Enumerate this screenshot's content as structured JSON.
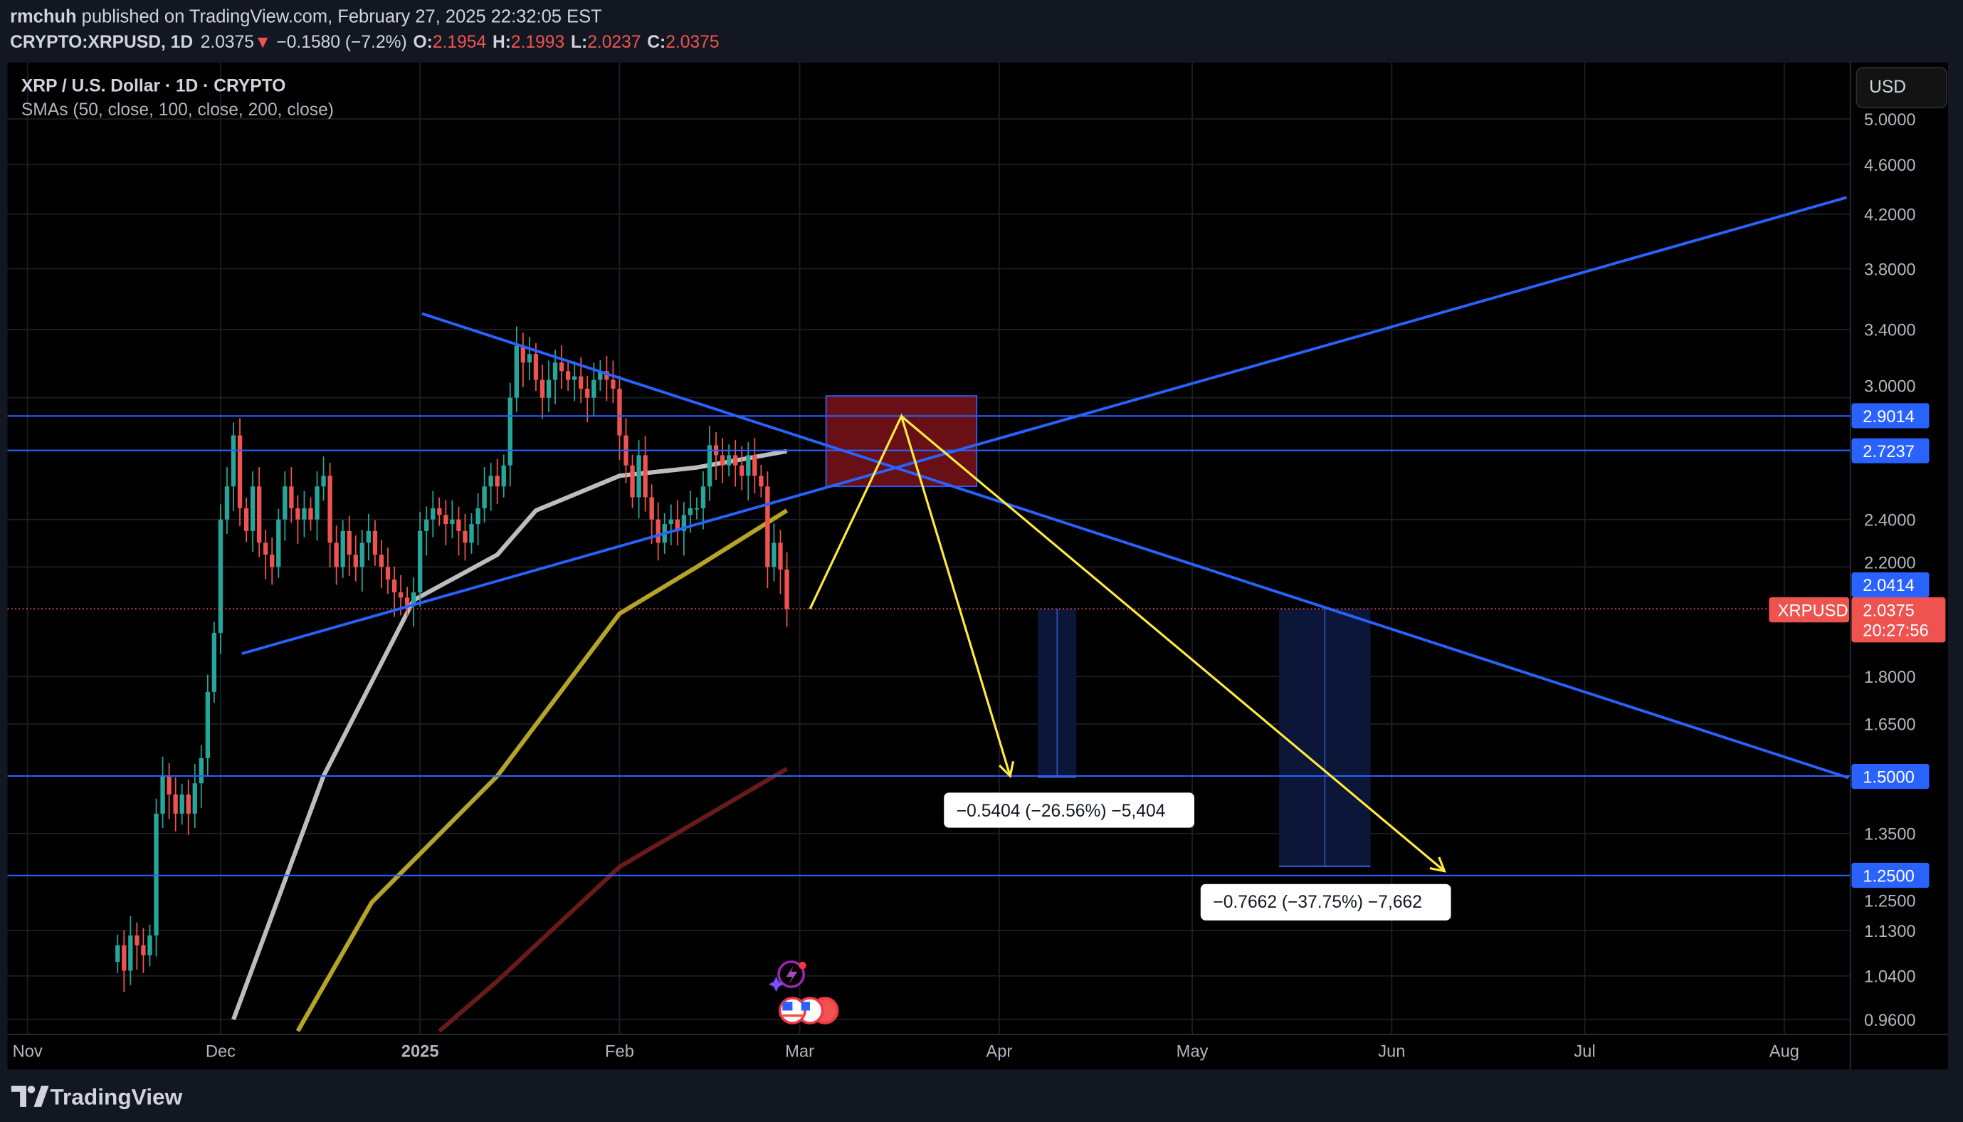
{
  "header": {
    "author": "rmchuh",
    "published": " published on TradingView.com, February 27, 2025 22:32:05 EST",
    "symbol": "CRYPTO:XRPUSD, 1D",
    "last": "2.0375",
    "change": "−0.1580 (−7.2%)",
    "o_label": "O:",
    "o": "2.1954",
    "h_label": "H:",
    "h": "2.1993",
    "l_label": "L:",
    "l": "2.0237",
    "c_label": "C:",
    "c": "2.0375"
  },
  "legend": {
    "title": "XRP / U.S. Dollar · 1D · CRYPTO",
    "indicator": "SMAs (50, close, 100, close, 200, close)"
  },
  "currency_button": "USD",
  "price_tags": {
    "symbol": "XRPUSD",
    "last": "2.0375",
    "countdown": "20:27:56",
    "lines": [
      "2.9014",
      "2.7237",
      "2.0414",
      "1.5000",
      "1.2500"
    ]
  },
  "measurements": [
    {
      "label": "−0.5404 (−26.56%) −5,404"
    },
    {
      "label": "−0.7662 (−37.75%) −7,662"
    }
  ],
  "brand": "TradingView",
  "colors": {
    "up": "#26a69a",
    "down": "#ef5350",
    "line": "#2962ff",
    "arrow": "#ffeb3b",
    "sma50": "#bdbdbd",
    "sma100": "#b5a428",
    "sma200": "#6b1a1a"
  },
  "chart_data": {
    "type": "candlestick",
    "title": "XRP / U.S. Dollar · 1D · CRYPTO",
    "yscale": "log",
    "ylim": [
      0.96,
      5.0
    ],
    "x_unit": "days since 2024-11-01",
    "x_ticks": [
      {
        "label": "Nov",
        "day": 0
      },
      {
        "label": "Dec",
        "day": 30
      },
      {
        "label": "2025",
        "day": 61
      },
      {
        "label": "Feb",
        "day": 92
      },
      {
        "label": "Mar",
        "day": 120
      },
      {
        "label": "Apr",
        "day": 151
      },
      {
        "label": "May",
        "day": 181
      },
      {
        "label": "Jun",
        "day": 212
      },
      {
        "label": "Jul",
        "day": 242
      },
      {
        "label": "Aug",
        "day": 273
      }
    ],
    "y_ticks": [
      "5.0000",
      "4.6000",
      "4.2000",
      "3.8000",
      "3.4000",
      "3.0000",
      "2.4000",
      "2.2000",
      "1.8000",
      "1.6500",
      "1.3500",
      "1.2500",
      "1.1300",
      "1.0400",
      "0.9600"
    ],
    "first_day": 14,
    "closes": [
      1.1,
      1.05,
      1.12,
      1.1,
      1.08,
      1.12,
      1.4,
      1.5,
      1.45,
      1.4,
      1.45,
      1.4,
      1.48,
      1.55,
      1.75,
      1.95,
      2.4,
      2.55,
      2.8,
      2.45,
      2.35,
      2.55,
      2.3,
      2.25,
      2.2,
      2.4,
      2.55,
      2.45,
      2.4,
      2.45,
      2.4,
      2.55,
      2.6,
      2.3,
      2.2,
      2.35,
      2.25,
      2.2,
      2.3,
      2.35,
      2.25,
      2.2,
      2.15,
      2.1,
      2.08,
      2.05,
      2.1,
      2.35,
      2.4,
      2.45,
      2.42,
      2.38,
      2.4,
      2.35,
      2.3,
      2.38,
      2.45,
      2.55,
      2.6,
      2.55,
      2.65,
      3.0,
      3.3,
      3.2,
      3.25,
      3.1,
      3.0,
      3.1,
      3.2,
      3.15,
      3.1,
      3.12,
      3.05,
      3.0,
      3.1,
      3.15,
      3.1,
      3.05,
      2.8,
      2.65,
      2.5,
      2.7,
      2.5,
      2.4,
      2.3,
      2.38,
      2.4,
      2.35,
      2.42,
      2.45,
      2.45,
      2.55,
      2.75,
      2.7,
      2.65,
      2.7,
      2.65,
      2.6,
      2.7,
      2.6,
      2.55,
      2.2,
      2.3,
      2.19,
      2.0375
    ],
    "sma": [
      {
        "name": "SMA 50",
        "points": [
          [
            32,
            0.96
          ],
          [
            46,
            1.5
          ],
          [
            60,
            2.07
          ],
          [
            73,
            2.25
          ],
          [
            79,
            2.44
          ],
          [
            92,
            2.6
          ],
          [
            104,
            2.64
          ],
          [
            118,
            2.72
          ]
        ]
      },
      {
        "name": "SMA 100",
        "points": [
          [
            42,
            0.94
          ],
          [
            53.5,
            1.19
          ],
          [
            73,
            1.5
          ],
          [
            92,
            2.02
          ],
          [
            104,
            2.2
          ],
          [
            118,
            2.44
          ]
        ]
      },
      {
        "name": "SMA 200",
        "points": [
          [
            64,
            0.94
          ],
          [
            73,
            1.03
          ],
          [
            92,
            1.27
          ],
          [
            118,
            1.52
          ]
        ]
      }
    ],
    "drawings": {
      "trendlines": [
        {
          "name": "descending",
          "from": [
            61.3,
            3.5
          ],
          "to": [
            283,
            1.495
          ]
        },
        {
          "name": "ascending",
          "from": [
            33.3,
            1.877
          ],
          "to": [
            282.7,
            4.33
          ]
        }
      ],
      "horizontal_levels": [
        2.9014,
        2.7237,
        1.5,
        1.25
      ],
      "zone": {
        "days": [
          124.1,
          147.5
        ],
        "prices": [
          2.55,
          3.01
        ]
      },
      "arrows": [
        [
          [
            121.6,
            2.0375
          ],
          [
            135.8,
            2.9
          ],
          [
            152.7,
            1.5
          ]
        ],
        [
          [
            135.8,
            2.9
          ],
          [
            220.2,
            1.26
          ]
        ]
      ],
      "measures": [
        {
          "days": [
            157,
            163
          ],
          "prices": [
            2.0375,
            1.4971
          ]
        },
        {
          "days": [
            194.5,
            208.7
          ],
          "prices": [
            2.0375,
            1.2713
          ]
        }
      ]
    }
  }
}
